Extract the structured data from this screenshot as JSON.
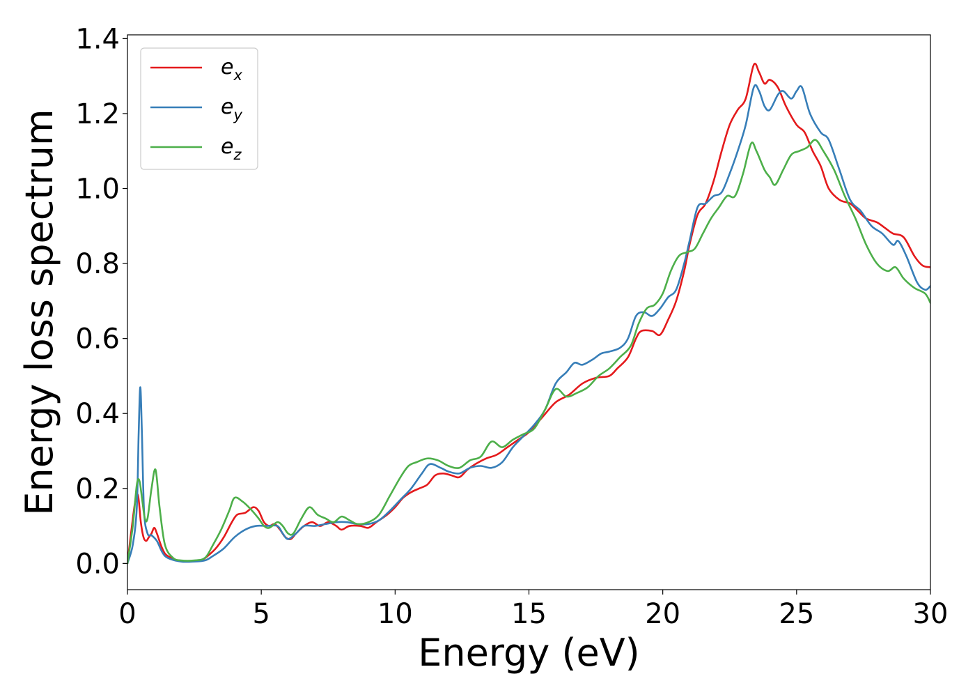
{
  "chart_data": {
    "type": "line",
    "xlabel": "Energy (eV)",
    "ylabel": "Energy loss spectrum",
    "xlim": [
      0,
      30
    ],
    "ylim": [
      -0.07,
      1.41
    ],
    "xticks": [
      0,
      5,
      10,
      15,
      20,
      25,
      30
    ],
    "xtick_labels": [
      "0",
      "5",
      "10",
      "15",
      "20",
      "25",
      "30"
    ],
    "yticks": [
      0.0,
      0.2,
      0.4,
      0.6,
      0.8,
      1.0,
      1.2,
      1.4
    ],
    "ytick_labels": [
      "0.0",
      "0.2",
      "0.4",
      "0.6",
      "0.8",
      "1.0",
      "1.2",
      "1.4"
    ],
    "grid": false,
    "legend_position": "top-left",
    "series": [
      {
        "name": "e",
        "subscript": "x",
        "color": "#e41a1c",
        "points": [
          [
            0,
            0.0
          ],
          [
            0.15,
            0.09
          ],
          [
            0.3,
            0.17
          ],
          [
            0.4,
            0.18
          ],
          [
            0.5,
            0.11
          ],
          [
            0.6,
            0.07
          ],
          [
            0.7,
            0.06
          ],
          [
            0.8,
            0.07
          ],
          [
            0.9,
            0.08
          ],
          [
            1.0,
            0.095
          ],
          [
            1.1,
            0.08
          ],
          [
            1.3,
            0.04
          ],
          [
            1.5,
            0.02
          ],
          [
            2.0,
            0.006
          ],
          [
            2.5,
            0.006
          ],
          [
            2.8,
            0.01
          ],
          [
            3.0,
            0.02
          ],
          [
            3.3,
            0.04
          ],
          [
            3.6,
            0.07
          ],
          [
            3.9,
            0.11
          ],
          [
            4.1,
            0.13
          ],
          [
            4.4,
            0.135
          ],
          [
            4.7,
            0.15
          ],
          [
            4.9,
            0.14
          ],
          [
            5.1,
            0.11
          ],
          [
            5.3,
            0.1
          ],
          [
            5.5,
            0.105
          ],
          [
            5.7,
            0.09
          ],
          [
            5.9,
            0.07
          ],
          [
            6.1,
            0.065
          ],
          [
            6.3,
            0.08
          ],
          [
            6.6,
            0.1
          ],
          [
            6.9,
            0.11
          ],
          [
            7.2,
            0.1
          ],
          [
            7.5,
            0.11
          ],
          [
            7.8,
            0.1
          ],
          [
            8.0,
            0.09
          ],
          [
            8.3,
            0.1
          ],
          [
            8.7,
            0.1
          ],
          [
            9.0,
            0.095
          ],
          [
            9.3,
            0.11
          ],
          [
            9.7,
            0.13
          ],
          [
            10.0,
            0.15
          ],
          [
            10.3,
            0.175
          ],
          [
            10.6,
            0.19
          ],
          [
            10.9,
            0.2
          ],
          [
            11.2,
            0.21
          ],
          [
            11.5,
            0.235
          ],
          [
            11.8,
            0.24
          ],
          [
            12.1,
            0.235
          ],
          [
            12.4,
            0.23
          ],
          [
            12.7,
            0.25
          ],
          [
            13.0,
            0.265
          ],
          [
            13.4,
            0.28
          ],
          [
            13.8,
            0.29
          ],
          [
            14.2,
            0.31
          ],
          [
            14.6,
            0.33
          ],
          [
            15.0,
            0.35
          ],
          [
            15.5,
            0.39
          ],
          [
            16.0,
            0.43
          ],
          [
            16.5,
            0.45
          ],
          [
            17.0,
            0.48
          ],
          [
            17.5,
            0.495
          ],
          [
            18.0,
            0.5
          ],
          [
            18.3,
            0.52
          ],
          [
            18.7,
            0.55
          ],
          [
            19.0,
            0.6
          ],
          [
            19.2,
            0.62
          ],
          [
            19.6,
            0.62
          ],
          [
            19.9,
            0.61
          ],
          [
            20.2,
            0.65
          ],
          [
            20.5,
            0.7
          ],
          [
            20.8,
            0.78
          ],
          [
            21.0,
            0.85
          ],
          [
            21.3,
            0.93
          ],
          [
            21.6,
            0.96
          ],
          [
            21.9,
            1.02
          ],
          [
            22.2,
            1.1
          ],
          [
            22.5,
            1.17
          ],
          [
            22.8,
            1.21
          ],
          [
            23.1,
            1.24
          ],
          [
            23.4,
            1.33
          ],
          [
            23.6,
            1.31
          ],
          [
            23.8,
            1.28
          ],
          [
            24.0,
            1.29
          ],
          [
            24.3,
            1.27
          ],
          [
            24.6,
            1.22
          ],
          [
            25.0,
            1.17
          ],
          [
            25.3,
            1.15
          ],
          [
            25.6,
            1.1
          ],
          [
            25.9,
            1.06
          ],
          [
            26.2,
            1.0
          ],
          [
            26.6,
            0.97
          ],
          [
            27.0,
            0.96
          ],
          [
            27.3,
            0.94
          ],
          [
            27.6,
            0.92
          ],
          [
            28.0,
            0.91
          ],
          [
            28.3,
            0.895
          ],
          [
            28.6,
            0.88
          ],
          [
            29.0,
            0.87
          ],
          [
            29.4,
            0.82
          ],
          [
            29.7,
            0.795
          ],
          [
            30.0,
            0.79
          ]
        ]
      },
      {
        "name": "e",
        "subscript": "y",
        "color": "#377eb8",
        "points": [
          [
            0,
            0.0
          ],
          [
            0.2,
            0.05
          ],
          [
            0.35,
            0.15
          ],
          [
            0.42,
            0.35
          ],
          [
            0.48,
            0.47
          ],
          [
            0.54,
            0.35
          ],
          [
            0.62,
            0.14
          ],
          [
            0.75,
            0.08
          ],
          [
            0.9,
            0.075
          ],
          [
            1.1,
            0.06
          ],
          [
            1.3,
            0.03
          ],
          [
            1.5,
            0.015
          ],
          [
            2.0,
            0.005
          ],
          [
            2.5,
            0.005
          ],
          [
            2.9,
            0.008
          ],
          [
            3.2,
            0.02
          ],
          [
            3.6,
            0.04
          ],
          [
            4.0,
            0.07
          ],
          [
            4.4,
            0.09
          ],
          [
            4.8,
            0.1
          ],
          [
            5.2,
            0.1
          ],
          [
            5.6,
            0.1
          ],
          [
            5.8,
            0.08
          ],
          [
            6.0,
            0.065
          ],
          [
            6.3,
            0.08
          ],
          [
            6.6,
            0.1
          ],
          [
            7.0,
            0.1
          ],
          [
            7.4,
            0.105
          ],
          [
            7.8,
            0.11
          ],
          [
            8.2,
            0.11
          ],
          [
            8.6,
            0.105
          ],
          [
            9.0,
            0.105
          ],
          [
            9.4,
            0.115
          ],
          [
            9.8,
            0.14
          ],
          [
            10.2,
            0.17
          ],
          [
            10.6,
            0.2
          ],
          [
            11.0,
            0.24
          ],
          [
            11.3,
            0.265
          ],
          [
            11.7,
            0.255
          ],
          [
            12.0,
            0.245
          ],
          [
            12.4,
            0.24
          ],
          [
            12.8,
            0.255
          ],
          [
            13.2,
            0.26
          ],
          [
            13.6,
            0.255
          ],
          [
            14.0,
            0.27
          ],
          [
            14.4,
            0.31
          ],
          [
            14.8,
            0.34
          ],
          [
            15.2,
            0.37
          ],
          [
            15.6,
            0.41
          ],
          [
            16.0,
            0.48
          ],
          [
            16.4,
            0.51
          ],
          [
            16.7,
            0.535
          ],
          [
            17.0,
            0.53
          ],
          [
            17.4,
            0.545
          ],
          [
            17.7,
            0.56
          ],
          [
            18.0,
            0.565
          ],
          [
            18.4,
            0.575
          ],
          [
            18.7,
            0.6
          ],
          [
            19.0,
            0.66
          ],
          [
            19.3,
            0.67
          ],
          [
            19.6,
            0.66
          ],
          [
            19.9,
            0.68
          ],
          [
            20.2,
            0.71
          ],
          [
            20.5,
            0.73
          ],
          [
            20.8,
            0.8
          ],
          [
            21.0,
            0.86
          ],
          [
            21.3,
            0.95
          ],
          [
            21.6,
            0.96
          ],
          [
            21.9,
            0.98
          ],
          [
            22.2,
            0.99
          ],
          [
            22.5,
            1.04
          ],
          [
            22.8,
            1.1
          ],
          [
            23.1,
            1.17
          ],
          [
            23.4,
            1.27
          ],
          [
            23.6,
            1.26
          ],
          [
            23.8,
            1.22
          ],
          [
            24.0,
            1.21
          ],
          [
            24.3,
            1.25
          ],
          [
            24.5,
            1.26
          ],
          [
            24.8,
            1.24
          ],
          [
            25.0,
            1.26
          ],
          [
            25.2,
            1.27
          ],
          [
            25.5,
            1.2
          ],
          [
            25.9,
            1.15
          ],
          [
            26.2,
            1.13
          ],
          [
            26.6,
            1.05
          ],
          [
            27.0,
            0.97
          ],
          [
            27.4,
            0.94
          ],
          [
            27.8,
            0.9
          ],
          [
            28.2,
            0.88
          ],
          [
            28.6,
            0.85
          ],
          [
            28.8,
            0.86
          ],
          [
            29.1,
            0.82
          ],
          [
            29.5,
            0.75
          ],
          [
            29.8,
            0.73
          ],
          [
            30.0,
            0.74
          ]
        ]
      },
      {
        "name": "e",
        "subscript": "z",
        "color": "#4daf4a",
        "points": [
          [
            0,
            0.0
          ],
          [
            0.2,
            0.1
          ],
          [
            0.35,
            0.21
          ],
          [
            0.45,
            0.22
          ],
          [
            0.55,
            0.17
          ],
          [
            0.65,
            0.12
          ],
          [
            0.75,
            0.12
          ],
          [
            0.9,
            0.2
          ],
          [
            1.05,
            0.25
          ],
          [
            1.2,
            0.15
          ],
          [
            1.4,
            0.05
          ],
          [
            1.7,
            0.015
          ],
          [
            2.0,
            0.008
          ],
          [
            2.5,
            0.008
          ],
          [
            2.9,
            0.015
          ],
          [
            3.2,
            0.05
          ],
          [
            3.5,
            0.09
          ],
          [
            3.8,
            0.14
          ],
          [
            4.0,
            0.175
          ],
          [
            4.3,
            0.165
          ],
          [
            4.6,
            0.145
          ],
          [
            4.9,
            0.12
          ],
          [
            5.1,
            0.1
          ],
          [
            5.3,
            0.095
          ],
          [
            5.6,
            0.11
          ],
          [
            5.8,
            0.1
          ],
          [
            6.0,
            0.08
          ],
          [
            6.2,
            0.08
          ],
          [
            6.5,
            0.12
          ],
          [
            6.8,
            0.15
          ],
          [
            7.1,
            0.13
          ],
          [
            7.4,
            0.12
          ],
          [
            7.7,
            0.11
          ],
          [
            8.0,
            0.125
          ],
          [
            8.3,
            0.115
          ],
          [
            8.6,
            0.105
          ],
          [
            9.0,
            0.11
          ],
          [
            9.4,
            0.13
          ],
          [
            9.8,
            0.18
          ],
          [
            10.2,
            0.23
          ],
          [
            10.5,
            0.26
          ],
          [
            10.8,
            0.27
          ],
          [
            11.2,
            0.28
          ],
          [
            11.6,
            0.275
          ],
          [
            12.0,
            0.26
          ],
          [
            12.4,
            0.255
          ],
          [
            12.8,
            0.275
          ],
          [
            13.2,
            0.285
          ],
          [
            13.6,
            0.325
          ],
          [
            14.0,
            0.31
          ],
          [
            14.4,
            0.33
          ],
          [
            14.8,
            0.345
          ],
          [
            15.2,
            0.36
          ],
          [
            15.6,
            0.41
          ],
          [
            16.0,
            0.465
          ],
          [
            16.4,
            0.445
          ],
          [
            16.8,
            0.455
          ],
          [
            17.2,
            0.47
          ],
          [
            17.6,
            0.5
          ],
          [
            18.0,
            0.52
          ],
          [
            18.4,
            0.55
          ],
          [
            18.8,
            0.58
          ],
          [
            19.1,
            0.64
          ],
          [
            19.4,
            0.68
          ],
          [
            19.7,
            0.69
          ],
          [
            20.0,
            0.72
          ],
          [
            20.3,
            0.78
          ],
          [
            20.6,
            0.82
          ],
          [
            20.9,
            0.83
          ],
          [
            21.2,
            0.84
          ],
          [
            21.5,
            0.88
          ],
          [
            21.8,
            0.92
          ],
          [
            22.1,
            0.95
          ],
          [
            22.4,
            0.98
          ],
          [
            22.7,
            0.98
          ],
          [
            23.0,
            1.04
          ],
          [
            23.3,
            1.12
          ],
          [
            23.5,
            1.1
          ],
          [
            23.8,
            1.05
          ],
          [
            24.0,
            1.03
          ],
          [
            24.2,
            1.01
          ],
          [
            24.5,
            1.05
          ],
          [
            24.8,
            1.09
          ],
          [
            25.1,
            1.1
          ],
          [
            25.4,
            1.11
          ],
          [
            25.7,
            1.13
          ],
          [
            26.0,
            1.1
          ],
          [
            26.4,
            1.05
          ],
          [
            26.8,
            0.98
          ],
          [
            27.2,
            0.92
          ],
          [
            27.6,
            0.85
          ],
          [
            28.0,
            0.8
          ],
          [
            28.4,
            0.78
          ],
          [
            28.7,
            0.79
          ],
          [
            29.0,
            0.76
          ],
          [
            29.4,
            0.735
          ],
          [
            29.8,
            0.72
          ],
          [
            30.0,
            0.695
          ]
        ]
      }
    ]
  }
}
